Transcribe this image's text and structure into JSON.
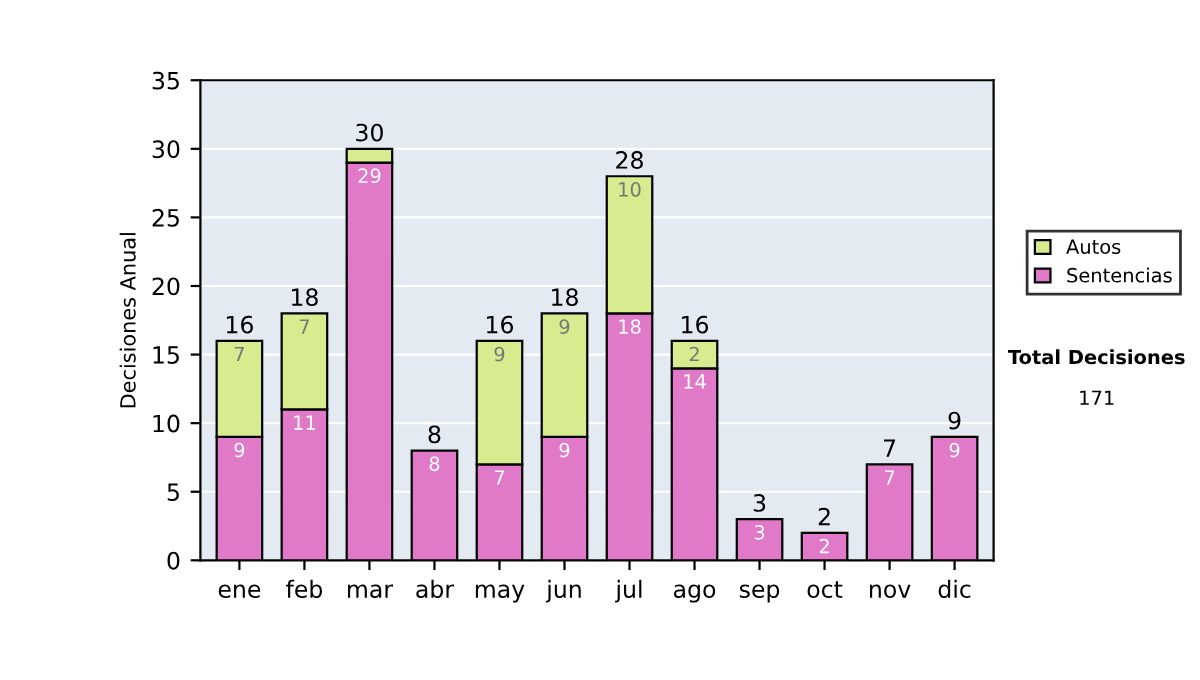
{
  "chart_data": {
    "type": "bar",
    "stacked": true,
    "ylabel": "Decisiones Anual",
    "categories": [
      "ene",
      "feb",
      "mar",
      "abr",
      "may",
      "jun",
      "jul",
      "ago",
      "sep",
      "oct",
      "nov",
      "dic"
    ],
    "series": [
      {
        "name": "Sentencias",
        "color": "#e07ac8",
        "values": [
          9,
          11,
          29,
          8,
          7,
          9,
          18,
          14,
          3,
          2,
          7,
          9
        ],
        "value_labels": [
          "9",
          "11",
          "29",
          "8",
          "7",
          "9",
          "18",
          "14",
          "3",
          "2",
          "7",
          "9"
        ]
      },
      {
        "name": "Autos",
        "color": "#d6ec8e",
        "values": [
          7,
          7,
          1,
          0,
          9,
          9,
          10,
          2,
          0,
          0,
          0,
          0
        ],
        "value_labels": [
          "7",
          "7",
          null,
          null,
          "9",
          "9",
          "10",
          "2",
          null,
          null,
          null,
          null
        ]
      }
    ],
    "totals": [
      "16",
      "18",
      "30",
      "8",
      "16",
      "18",
      "28",
      "16",
      "3",
      "2",
      "7",
      "9"
    ],
    "ylim": [
      0,
      35
    ],
    "yticks": [
      0,
      5,
      10,
      15,
      20,
      25,
      30,
      35
    ],
    "grid": "y",
    "legend": "right",
    "annotations": [
      "Total Decisiones",
      "171"
    ]
  }
}
